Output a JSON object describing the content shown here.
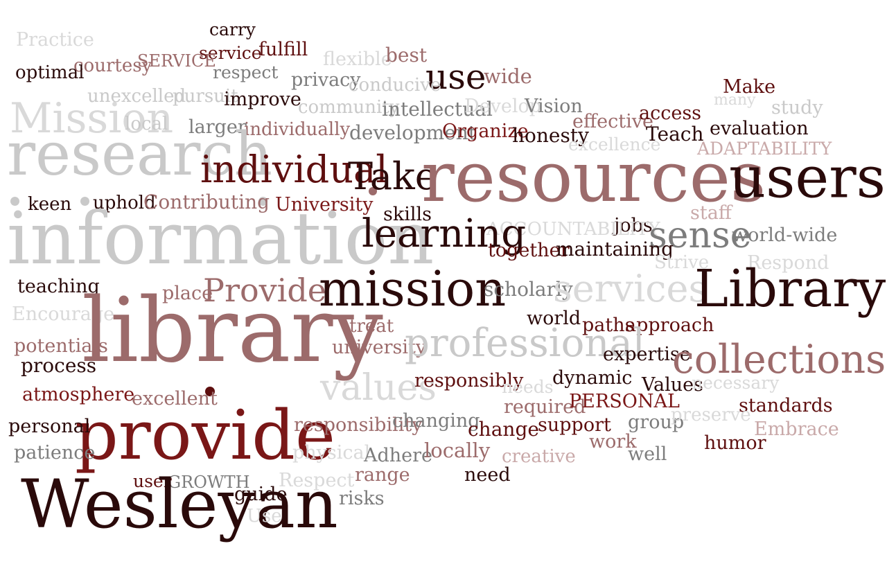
{
  "colors": {
    "black": "#2a0a0a",
    "dark": "#5e0f0f",
    "maroon": "#7a1717",
    "rose": "#9c6b6b",
    "light_rose": "#c9a9a9",
    "gray": "#7c7c7c",
    "light_gray": "#c9c9c9",
    "pale": "#d9d9d9"
  },
  "words": [
    "Practice",
    "carry",
    "fulfill",
    "service",
    "SERVICE",
    "flexible",
    "best",
    "courtesy",
    "optimal",
    "respect",
    "privacy",
    "use",
    "wide",
    "conducive",
    "unexcelled",
    "pursuit",
    "improve",
    "community",
    "intellectual",
    "Develop",
    "Vision",
    "Make",
    "many",
    "study",
    "Mission",
    "local",
    "larger",
    "individually",
    "development",
    "Organize",
    "effective",
    "access",
    "honesty",
    "Teach",
    "evaluation",
    "excellence",
    "ADAPTABILITY",
    "research",
    "individual",
    "Take",
    "resources",
    "users",
    "keen",
    "uphold",
    "Contributing",
    "University",
    "skills",
    "staff",
    "jobs",
    "ACCOUNTABILITY",
    "sense",
    "world-wide",
    "information",
    "learning",
    "together",
    "maintaining",
    "Strive",
    "Respond",
    "teaching",
    "place",
    "Provide",
    "mission",
    "scholarly",
    "services",
    "Library",
    "Encourage",
    "library",
    "treat",
    "world",
    "paths",
    "approach",
    "potentials",
    "university",
    "professional",
    "expertise",
    "collections",
    "process",
    "values",
    "responsibly",
    "needs",
    "dynamic",
    "Values",
    "necessary",
    "atmosphere",
    "excellent",
    "required",
    "PERSONAL",
    "standards",
    "provide",
    "responsibility",
    "changing",
    "change",
    "support",
    "group",
    "preserve",
    "personal",
    "Embrace",
    "work",
    "humor",
    "patience",
    "physical",
    "Adhere",
    "locally",
    "creative",
    "well",
    "range",
    "need",
    "user",
    "GROWTH",
    "Respect",
    "Wesleyan",
    "guide",
    "risks",
    "Use"
  ]
}
